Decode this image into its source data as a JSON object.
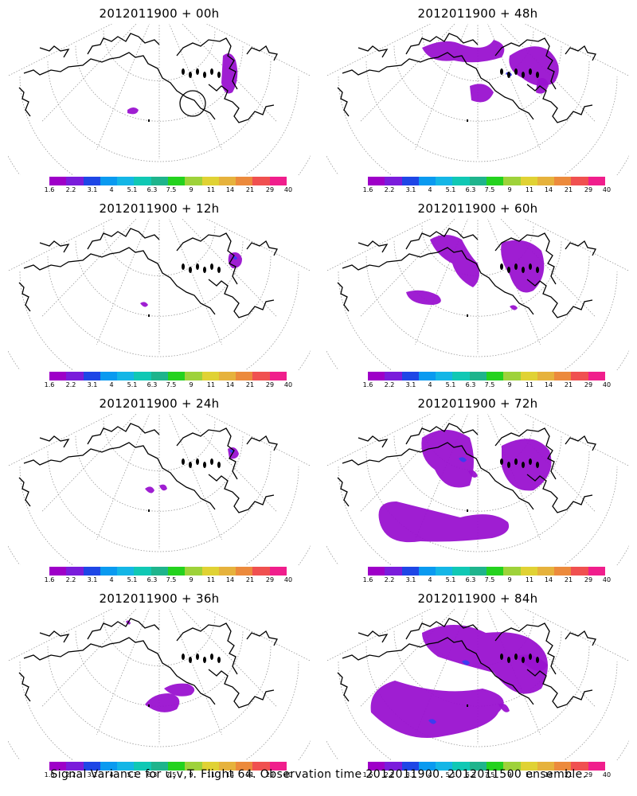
{
  "panels": [
    {
      "title": "2012011900 + 00h",
      "variance_blobs": 2,
      "blob_extent": "small"
    },
    {
      "title": "2012011900 + 48h",
      "variance_blobs": 5,
      "blob_extent": "moderate"
    },
    {
      "title": "2012011900 + 12h",
      "variance_blobs": 2,
      "blob_extent": "small"
    },
    {
      "title": "2012011900 + 60h",
      "variance_blobs": 5,
      "blob_extent": "moderate"
    },
    {
      "title": "2012011900 + 24h",
      "variance_blobs": 3,
      "blob_extent": "small"
    },
    {
      "title": "2012011900 + 72h",
      "variance_blobs": 4,
      "blob_extent": "large"
    },
    {
      "title": "2012011900 + 36h",
      "variance_blobs": 3,
      "blob_extent": "small"
    },
    {
      "title": "2012011900 + 84h",
      "variance_blobs": 4,
      "blob_extent": "large"
    }
  ],
  "colorbar": {
    "labels": [
      "1.6",
      "2.2",
      "3.1",
      "4",
      "5.1",
      "6.3",
      "7.5",
      "9",
      "11",
      "14",
      "21",
      "29",
      "40"
    ],
    "colors": [
      "#9e00c8",
      "#7a1cdb",
      "#1e46e6",
      "#0a9af0",
      "#14b6e6",
      "#10c8b4",
      "#1eb48c",
      "#24d21e",
      "#9ed23a",
      "#e0d234",
      "#e6b23c",
      "#ec8a3c",
      "#f05050",
      "#f01e8c"
    ]
  },
  "overlay": {
    "variance_fill": "#9a12d0",
    "variance_core": "#3c3cf0",
    "coast_color": "#000000",
    "grid_color": "#999999"
  },
  "footer": "Signal Variance for u,v,T. Flight 64. Observation time 2012011900. 2012011500 ensemble."
}
